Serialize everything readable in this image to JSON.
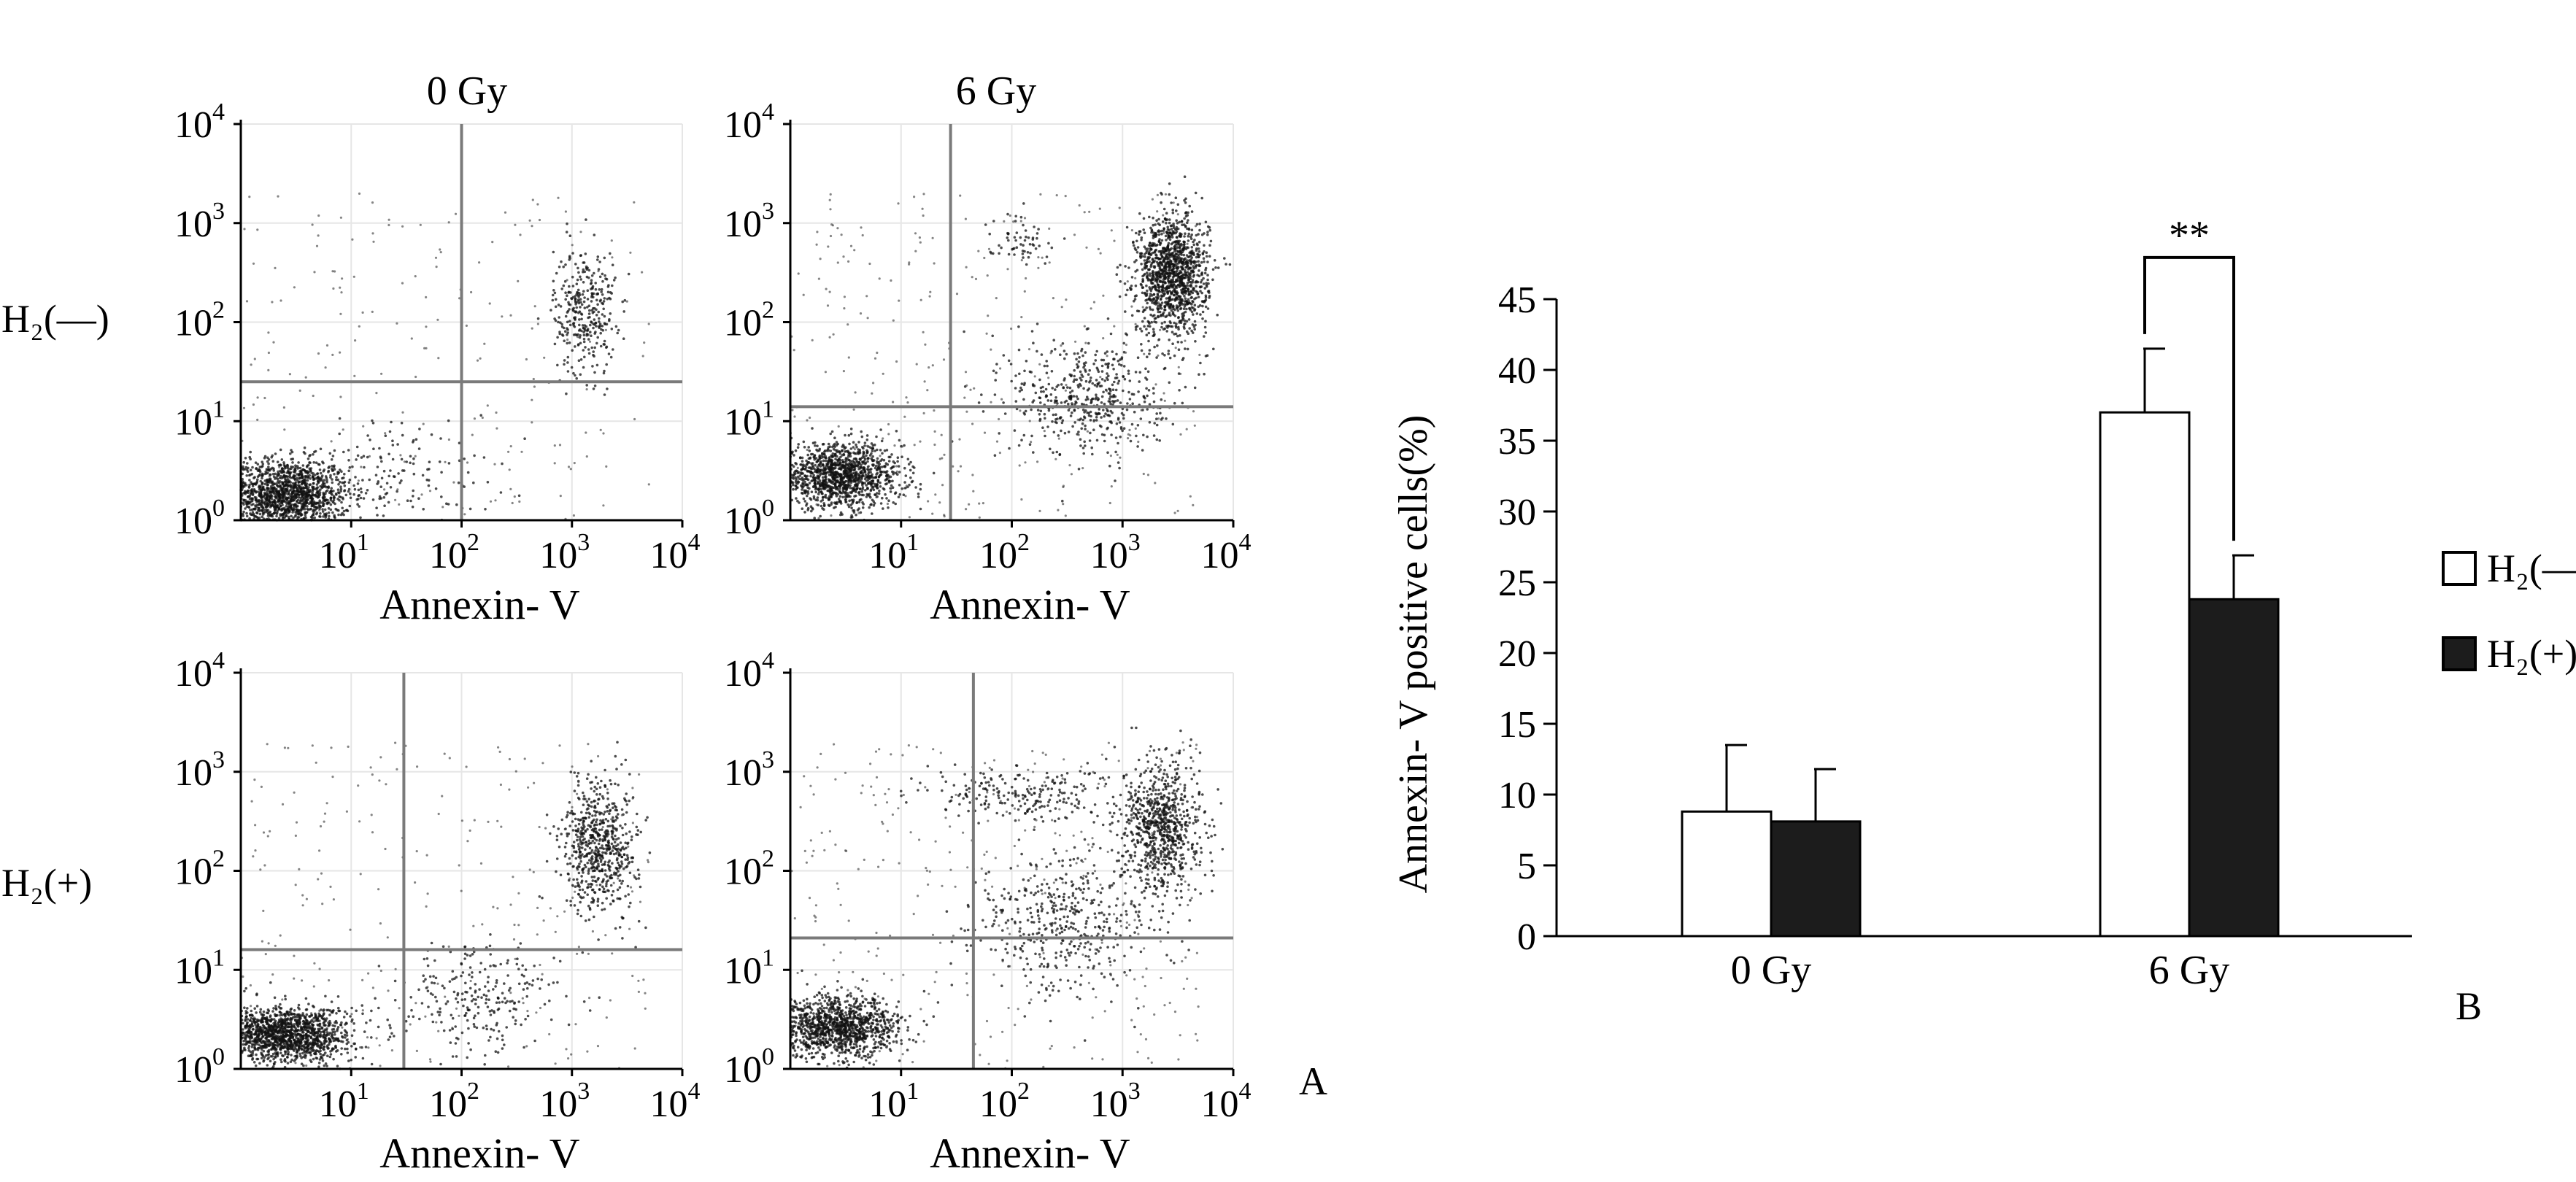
{
  "panel_labels": {
    "a": "A",
    "b": "B"
  },
  "row_labels": [
    "H₂(—)",
    "H₂(+)"
  ],
  "column_titles": [
    "0 Gy",
    "6 Gy"
  ],
  "chart_data": [
    {
      "type": "scatter",
      "panel": "A",
      "scale": "log",
      "xlabel": "Annexin- V",
      "x_ticks": [
        {
          "base": "10",
          "exp": "1",
          "value": 10
        },
        {
          "base": "10",
          "exp": "2",
          "value": 100
        },
        {
          "base": "10",
          "exp": "3",
          "value": 1000
        },
        {
          "base": "10",
          "exp": "4",
          "value": 10000
        }
      ],
      "y_ticks": [
        {
          "base": "10",
          "exp": "0",
          "value": 1
        },
        {
          "base": "10",
          "exp": "1",
          "value": 10
        },
        {
          "base": "10",
          "exp": "2",
          "value": 100
        },
        {
          "base": "10",
          "exp": "3",
          "value": 1000
        },
        {
          "base": "10",
          "exp": "4",
          "value": 10000
        }
      ],
      "xlim": [
        1,
        10000
      ],
      "ylim": [
        1,
        10000
      ],
      "plots": [
        {
          "row": "H₂(—)",
          "column": "0 Gy",
          "quadrant_gate": {
            "x": 100,
            "y": 25
          },
          "populations": [
            {
              "cx": 2.5,
              "cy": 1.8,
              "sx": 0.3,
              "sy": 0.18,
              "n": 1600
            },
            {
              "cx": 1300,
              "cy": 130,
              "sx": 0.14,
              "sy": 0.32,
              "n": 340
            },
            {
              "cx": 30,
              "cy": 3,
              "sx": 0.45,
              "sy": 0.3,
              "n": 140
            }
          ],
          "sparse_points": 200
        },
        {
          "row": "H₂(—)",
          "column": "6 Gy",
          "quadrant_gate": {
            "x": 28,
            "y": 14
          },
          "populations": [
            {
              "cx": 2.8,
              "cy": 2.8,
              "sx": 0.28,
              "sy": 0.16,
              "n": 1300
            },
            {
              "cx": 2800,
              "cy": 300,
              "sx": 0.16,
              "sy": 0.3,
              "n": 1300
            },
            {
              "cx": 500,
              "cy": 18,
              "sx": 0.35,
              "sy": 0.3,
              "n": 500
            },
            {
              "cx": 120,
              "cy": 700,
              "sx": 0.15,
              "sy": 0.12,
              "n": 60
            }
          ],
          "sparse_points": 320
        },
        {
          "row": "H₂(+)",
          "column": "0 Gy",
          "quadrant_gate": {
            "x": 30,
            "y": 16
          },
          "populations": [
            {
              "cx": 2.5,
              "cy": 2.2,
              "sx": 0.3,
              "sy": 0.14,
              "n": 1500
            },
            {
              "cx": 1800,
              "cy": 180,
              "sx": 0.17,
              "sy": 0.33,
              "n": 650
            },
            {
              "cx": 150,
              "cy": 5,
              "sx": 0.35,
              "sy": 0.3,
              "n": 250
            }
          ],
          "sparse_points": 260
        },
        {
          "row": "H₂(+)",
          "column": "6 Gy",
          "quadrant_gate": {
            "x": 45,
            "y": 21
          },
          "populations": [
            {
              "cx": 2.7,
              "cy": 2.6,
              "sx": 0.28,
              "sy": 0.15,
              "n": 1200
            },
            {
              "cx": 2300,
              "cy": 280,
              "sx": 0.18,
              "sy": 0.34,
              "n": 800
            },
            {
              "cx": 300,
              "cy": 30,
              "sx": 0.4,
              "sy": 0.35,
              "n": 450
            },
            {
              "cx": 120,
              "cy": 600,
              "sx": 0.45,
              "sy": 0.14,
              "n": 220
            }
          ],
          "sparse_points": 320
        }
      ]
    },
    {
      "type": "bar",
      "panel": "B",
      "categories": [
        "0 Gy",
        "6 Gy"
      ],
      "series": [
        {
          "name": "H₂(—)",
          "values": [
            8.8,
            37.0
          ],
          "error": [
            4.7,
            4.5
          ],
          "color": "#ffffff"
        },
        {
          "name": "H₂(+)",
          "values": [
            8.1,
            23.8
          ],
          "error": [
            3.7,
            3.1
          ],
          "color": "#1c1c1c"
        }
      ],
      "xlabel": "",
      "ylabel": "Annexin- V positive cells(%)",
      "ylim": [
        0,
        45
      ],
      "yticks": [
        0,
        5,
        10,
        15,
        20,
        25,
        30,
        35,
        40,
        45
      ],
      "legend_position": "right",
      "annotations": [
        {
          "text": "**",
          "category": "6 Gy",
          "between_series": [
            0,
            1
          ]
        }
      ]
    }
  ]
}
